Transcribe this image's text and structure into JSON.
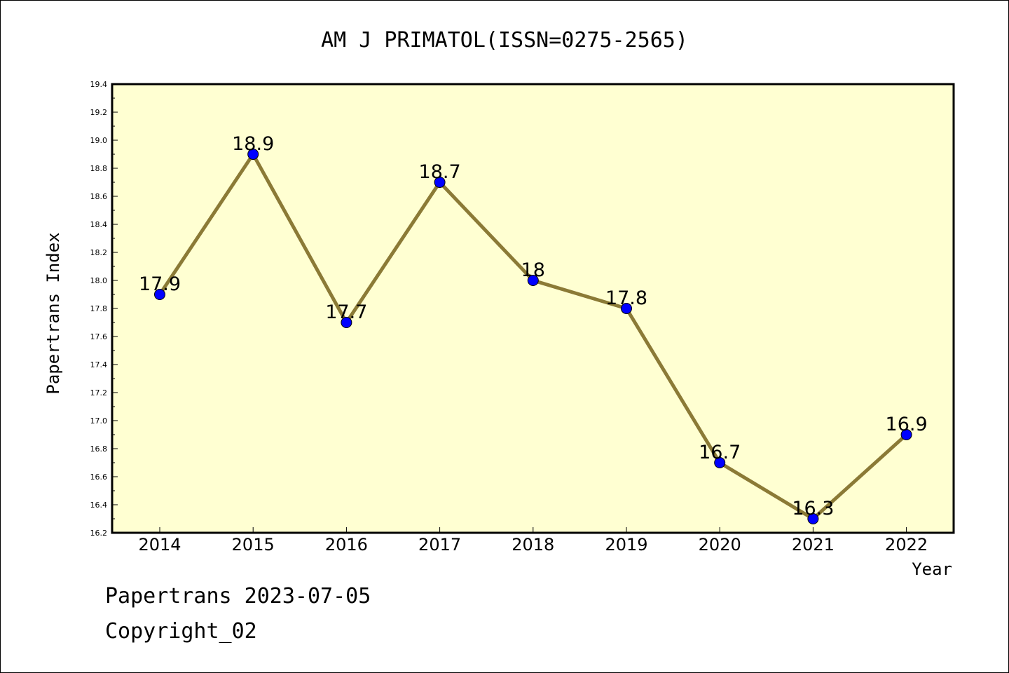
{
  "footer": {
    "line1": "Papertrans 2023-07-05",
    "line2": "Copyright_02"
  },
  "chart_data": {
    "type": "line",
    "title": "AM J PRIMATOL(ISSN=0275-2565)",
    "xlabel": "Year",
    "ylabel": "Papertrans Index",
    "categories": [
      "2014",
      "2015",
      "2016",
      "2017",
      "2018",
      "2019",
      "2020",
      "2021",
      "2022"
    ],
    "values": [
      17.9,
      18.9,
      17.7,
      18.7,
      18,
      17.8,
      16.7,
      16.3,
      16.9
    ],
    "data_labels": [
      "17.9",
      "18.9",
      "17.7",
      "18.7",
      "18",
      "17.8",
      "16.7",
      "16.3",
      "16.9"
    ],
    "ylim": [
      16.2,
      19.4
    ],
    "yticks": [
      "16.2",
      "16.4",
      "16.6",
      "16.8",
      "17.0",
      "17.2",
      "17.4",
      "17.6",
      "17.8",
      "18.0",
      "18.2",
      "18.4",
      "18.6",
      "18.8",
      "19.0",
      "19.2",
      "19.4"
    ],
    "grid": false,
    "legend": "none",
    "colors": {
      "plot_background": "#ffffd2",
      "line": "#8b7a36",
      "marker": "#0000ff"
    }
  }
}
